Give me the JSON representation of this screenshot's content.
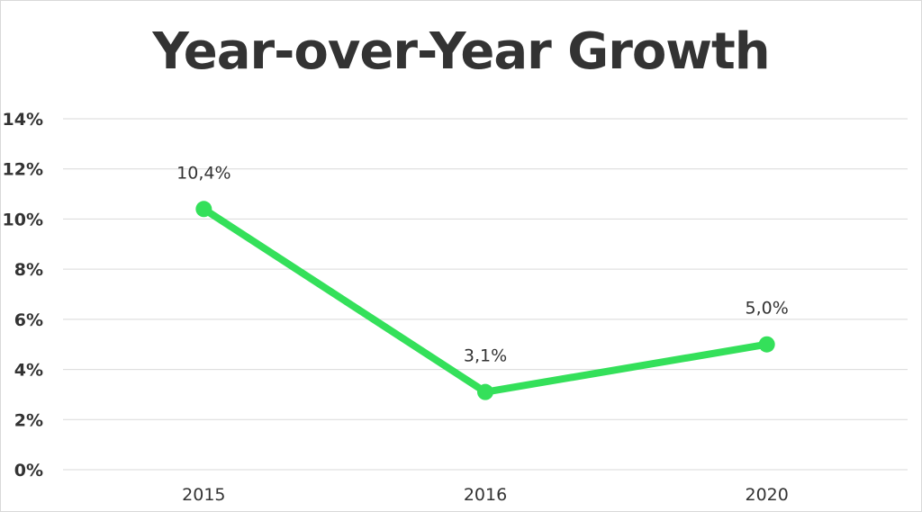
{
  "chart_data": {
    "type": "line",
    "title": "Year-over-Year Growth",
    "categories": [
      "2015",
      "2016",
      "2020"
    ],
    "series": [
      {
        "values": [
          10.4,
          3.1,
          5.0
        ],
        "data_labels": [
          "10,4%",
          "3,1%",
          "5,0%"
        ],
        "color": "#34e05a"
      }
    ],
    "ylim": [
      0,
      14
    ],
    "yticks": [
      0,
      2,
      4,
      6,
      8,
      10,
      12,
      14
    ],
    "ytick_labels": [
      "0%",
      "2%",
      "4%",
      "6%",
      "8%",
      "10%",
      "12%",
      "14%"
    ],
    "xlabel": "",
    "ylabel": "",
    "grid": true,
    "legend": "none"
  }
}
